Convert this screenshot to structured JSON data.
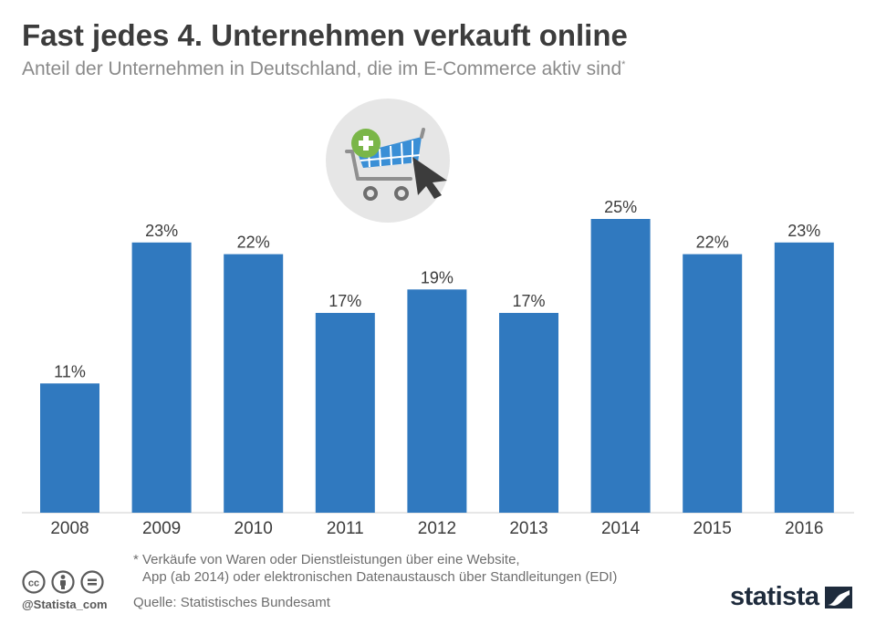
{
  "header": {
    "title": "Fast jedes 4. Unternehmen verkauft online",
    "subtitle": "Anteil der Unternehmen in Deutschland, die im E-Commerce aktiv sind",
    "subtitle_mark": "*"
  },
  "chart_data": {
    "type": "bar",
    "title": "Fast jedes 4. Unternehmen verkauft online",
    "subtitle": "Anteil der Unternehmen in Deutschland, die im E-Commerce aktiv sind*",
    "categories": [
      "2008",
      "2009",
      "2010",
      "2011",
      "2012",
      "2013",
      "2014",
      "2015",
      "2016"
    ],
    "values": [
      11,
      23,
      22,
      17,
      19,
      17,
      25,
      22,
      23
    ],
    "value_labels": [
      "11%",
      "23%",
      "22%",
      "17%",
      "19%",
      "17%",
      "25%",
      "22%",
      "23%"
    ],
    "unit": "%",
    "xlabel": "",
    "ylabel": "",
    "ylim": [
      0,
      25
    ],
    "grid": false,
    "bar_color": "#3079bf"
  },
  "footer": {
    "footnote_line1": "* Verkäufe von Waren oder Dienstleistungen über eine Website,",
    "footnote_line2": "App (ab 2014) oder elektronischen Datenaustausch über Standleitungen (EDI)",
    "source": "Quelle: Statistisches Bundesamt",
    "handle": "@Statista_com",
    "brand": "statista"
  },
  "icons": [
    "shopping-cart-icon",
    "plus-icon",
    "cursor-icon",
    "cc-icon",
    "attribution-icon",
    "no-derivatives-icon",
    "statista-logo-icon"
  ],
  "colors": {
    "bar": "#3079bf",
    "title": "#3c3c3c",
    "subtitle": "#8a8a8a",
    "plus_badge": "#7ab648",
    "icon_circle": "#e6e6e6"
  }
}
